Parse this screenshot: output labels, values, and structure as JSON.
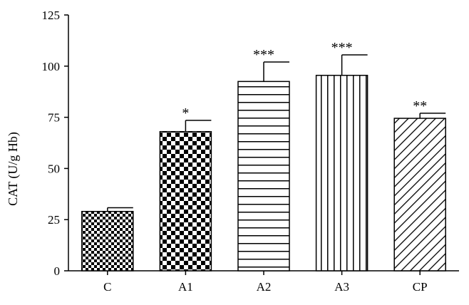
{
  "chart_data": {
    "type": "bar",
    "categories": [
      "C",
      "A1",
      "A2",
      "A3",
      "CP"
    ],
    "values": [
      29,
      68,
      92.5,
      95.5,
      74.5
    ],
    "errors": [
      1.8,
      5.5,
      9.5,
      10,
      2.5
    ],
    "significance": [
      "",
      "*",
      "***",
      "***",
      "**"
    ],
    "patterns": [
      "fine-checker",
      "checker",
      "horizontal-lines",
      "vertical-lines",
      "diagonal-lines"
    ],
    "title": "",
    "xlabel": "",
    "ylabel": "CAT (U/g Hb)",
    "ylim": [
      0,
      125
    ],
    "yticks": [
      0,
      25,
      50,
      75,
      100,
      125
    ],
    "grid": false,
    "legend": "none"
  }
}
